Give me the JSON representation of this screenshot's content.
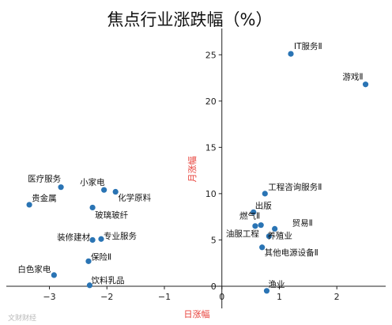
{
  "chart_data": {
    "type": "scatter",
    "title": "焦点行业涨跌幅（%）",
    "xlabel": "日涨幅",
    "ylabel": "月涨幅",
    "xlim": [
      -3.75,
      2.85
    ],
    "ylim": [
      -1.2,
      27.5
    ],
    "xticks": [
      -3,
      -2,
      -1,
      0,
      1,
      2
    ],
    "yticks": [
      0,
      5,
      10,
      15,
      20,
      25
    ],
    "grid": false,
    "point_color": "#2a74b4",
    "label_color": "#e8413a",
    "points": [
      {
        "label": "IT服务Ⅱ",
        "x": 1.2,
        "y": 25.1
      },
      {
        "label": "游戏Ⅱ",
        "x": 2.5,
        "y": 21.8
      },
      {
        "label": "工程咨询服务Ⅱ",
        "x": 0.75,
        "y": 10.0
      },
      {
        "label": "出版",
        "x": 0.55,
        "y": 8.0
      },
      {
        "label": "燃气Ⅱ",
        "x": 0.68,
        "y": 6.6
      },
      {
        "label": "贸易Ⅱ",
        "x": 0.92,
        "y": 6.2
      },
      {
        "label": "油服工程",
        "x": 0.58,
        "y": 6.5
      },
      {
        "label": "养殖业",
        "x": 0.82,
        "y": 5.4
      },
      {
        "label": "其他电源设备Ⅱ",
        "x": 0.7,
        "y": 4.2
      },
      {
        "label": "渔业",
        "x": 0.78,
        "y": -0.5
      },
      {
        "label": "医疗服务",
        "x": -2.8,
        "y": 10.7
      },
      {
        "label": "贵金属",
        "x": -3.35,
        "y": 8.8
      },
      {
        "label": "小家电",
        "x": -2.05,
        "y": 10.4
      },
      {
        "label": "化学原料",
        "x": -1.85,
        "y": 10.2
      },
      {
        "label": "玻璃玻纤",
        "x": -2.25,
        "y": 8.5
      },
      {
        "label": "装修建材",
        "x": -2.25,
        "y": 5.0
      },
      {
        "label": "专业服务",
        "x": -2.1,
        "y": 5.1
      },
      {
        "label": "保险Ⅱ",
        "x": -2.32,
        "y": 2.7
      },
      {
        "label": "白色家电",
        "x": -2.92,
        "y": 1.2
      },
      {
        "label": "饮料乳品",
        "x": -2.3,
        "y": 0.1
      }
    ]
  },
  "watermark": "文财财经"
}
